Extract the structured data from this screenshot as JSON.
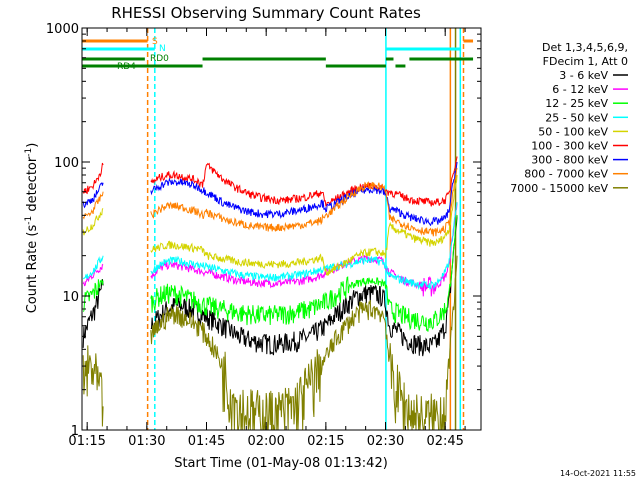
{
  "chart_data": {
    "type": "line",
    "title": "RHESSI Observing Summary Count Rates",
    "xlabel": "Start Time (01-May-08 01:13:42)",
    "ylabel_main": "Count Rate (s",
    "ylabel_sup1": "-1",
    "ylabel_mid": " detector",
    "ylabel_sup2": "-1",
    "ylabel_end": ")",
    "y_scale": "log",
    "ylim": [
      1,
      1000
    ],
    "xlim_minutes": [
      73.7,
      174
    ],
    "grid": false,
    "x_ticks": [
      {
        "t": 75,
        "label": "01:15"
      },
      {
        "t": 90,
        "label": "01:30"
      },
      {
        "t": 105,
        "label": "01:45"
      },
      {
        "t": 120,
        "label": "02:00"
      },
      {
        "t": 135,
        "label": "02:15"
      },
      {
        "t": 150,
        "label": "02:30"
      },
      {
        "t": 165,
        "label": "02:45"
      }
    ],
    "y_ticks": [
      {
        "v": 1,
        "label": "1"
      },
      {
        "v": 10,
        "label": "10"
      },
      {
        "v": 100,
        "label": "100"
      },
      {
        "v": 1000,
        "label": "1000"
      }
    ],
    "legend_header": [
      "Det 1,3,4,5,6,9,",
      "FDecim 1, Att 0"
    ],
    "legend_placement": "right",
    "series": [
      {
        "name": "3 - 6 keV",
        "color": "#000000",
        "t": [
          74,
          76,
          77,
          78,
          79,
          91,
          93,
          95,
          97,
          99,
          101,
          103,
          105,
          107,
          109,
          111,
          113,
          115,
          117,
          119,
          121,
          123,
          125,
          127,
          129,
          131,
          133,
          135,
          137,
          139,
          141,
          143,
          145,
          147,
          149,
          150,
          151,
          153,
          155,
          157,
          159,
          161,
          163,
          165,
          166,
          167,
          168
        ],
        "v": [
          5,
          7,
          8,
          10,
          12,
          6,
          7,
          8,
          8.5,
          8.5,
          8,
          7.5,
          7,
          6.5,
          6,
          5.5,
          5,
          4.8,
          4.6,
          4.5,
          4.4,
          4.4,
          4.5,
          4.6,
          4.8,
          5,
          5.5,
          6,
          7,
          8,
          9,
          10,
          10.5,
          10.5,
          10,
          9,
          6,
          5.5,
          4.8,
          4.5,
          4.3,
          4.2,
          4.5,
          6,
          9,
          20,
          40
        ]
      },
      {
        "name": "6 - 12 keV",
        "color": "#ff00ff",
        "t": [
          74,
          76,
          77,
          78,
          79,
          91,
          93,
          95,
          97,
          99,
          101,
          103,
          105,
          107,
          109,
          111,
          113,
          115,
          117,
          119,
          121,
          123,
          125,
          127,
          129,
          131,
          133,
          135,
          137,
          139,
          141,
          143,
          145,
          147,
          149,
          150,
          151,
          153,
          155,
          157,
          159,
          161,
          163,
          165,
          166,
          167,
          168
        ],
        "v": [
          12,
          14,
          15,
          16,
          17,
          14,
          16,
          17,
          17,
          16.5,
          16,
          15.5,
          15,
          14.5,
          14,
          13.5,
          13,
          12.8,
          12.6,
          12.5,
          12.5,
          12.5,
          12.6,
          12.8,
          13,
          13.5,
          14,
          15,
          16,
          17,
          18,
          18.5,
          19,
          19,
          18.5,
          17,
          15,
          14,
          13,
          12.5,
          12,
          11.8,
          12,
          14,
          17,
          30,
          50
        ]
      },
      {
        "name": "12 - 25 keV",
        "color": "#00ff00",
        "t": [
          74,
          76,
          77,
          78,
          79,
          91,
          93,
          95,
          97,
          99,
          101,
          103,
          105,
          107,
          109,
          111,
          113,
          115,
          117,
          119,
          121,
          123,
          125,
          127,
          129,
          131,
          133,
          135,
          137,
          139,
          141,
          143,
          145,
          147,
          149,
          150,
          151,
          153,
          155,
          157,
          159,
          161,
          163,
          165,
          166,
          167,
          168
        ],
        "v": [
          9,
          10,
          11,
          12,
          13,
          9,
          10,
          10.5,
          10.5,
          10,
          9.5,
          9,
          8.5,
          8.2,
          8,
          7.8,
          7.5,
          7.4,
          7.3,
          7.2,
          7.2,
          7.3,
          7.4,
          7.6,
          7.8,
          8,
          8.5,
          9,
          10,
          11,
          12,
          12.5,
          13,
          13,
          12.5,
          12,
          8,
          7.5,
          7,
          6.8,
          6.6,
          6.5,
          6.8,
          8,
          10,
          20,
          40
        ]
      },
      {
        "name": "25 - 50 keV",
        "color": "#00ffff",
        "t": [
          74,
          76,
          77,
          78,
          79,
          91,
          93,
          95,
          97,
          99,
          101,
          103,
          105,
          107,
          109,
          111,
          113,
          115,
          117,
          119,
          121,
          123,
          125,
          127,
          129,
          131,
          133,
          135,
          137,
          139,
          141,
          143,
          145,
          147,
          149,
          150,
          151,
          153,
          155,
          157,
          159,
          161,
          163,
          165,
          166,
          167,
          168
        ],
        "v": [
          13,
          15,
          16,
          18,
          20,
          15,
          17,
          18,
          18.5,
          18,
          17.5,
          17,
          16.5,
          16,
          15.5,
          15,
          14.5,
          14.2,
          14,
          13.8,
          13.8,
          13.9,
          14,
          14.2,
          14.5,
          15,
          15.5,
          16,
          16.5,
          17,
          17.5,
          18,
          18.5,
          18.5,
          18,
          17,
          14,
          13.5,
          13,
          12.5,
          12.2,
          12,
          12.5,
          15,
          18,
          30,
          50
        ]
      },
      {
        "name": "50 - 100 keV",
        "color": "#d4d400",
        "t": [
          74,
          76,
          77,
          78,
          79,
          91,
          93,
          95,
          97,
          99,
          101,
          103,
          104,
          105,
          107,
          109,
          111,
          113,
          115,
          117,
          119,
          121,
          123,
          125,
          127,
          129,
          131,
          133,
          134,
          135,
          137,
          139,
          141,
          143,
          145,
          147,
          149,
          150,
          151,
          153,
          155,
          157,
          159,
          161,
          163,
          165,
          166,
          167,
          168
        ],
        "v": [
          30,
          33,
          36,
          40,
          45,
          22,
          23,
          24,
          24,
          23.5,
          23,
          22.5,
          22,
          20,
          19.5,
          19,
          18.5,
          18,
          17.8,
          17.5,
          17.4,
          17.3,
          17.3,
          17.4,
          17.6,
          18,
          18.5,
          19,
          19.5,
          15,
          16,
          17,
          18.5,
          20,
          21,
          21.5,
          21,
          20,
          33,
          31,
          29,
          27,
          26,
          25,
          25,
          28,
          32,
          50,
          80
        ]
      },
      {
        "name": "100 - 300 keV",
        "color": "#ff0000",
        "t": [
          74,
          76,
          77,
          78,
          79,
          91,
          93,
          95,
          97,
          99,
          101,
          103,
          104,
          105,
          107,
          109,
          111,
          113,
          115,
          117,
          119,
          121,
          123,
          125,
          127,
          129,
          131,
          133,
          134,
          135,
          137,
          139,
          141,
          143,
          145,
          147,
          149,
          150,
          151,
          153,
          155,
          157,
          159,
          161,
          163,
          165,
          166,
          167,
          168
        ],
        "v": [
          60,
          65,
          70,
          80,
          95,
          70,
          76,
          80,
          80,
          78,
          75,
          72,
          68,
          95,
          85,
          75,
          68,
          63,
          59,
          56,
          54,
          53,
          52,
          52,
          53,
          54,
          56,
          58,
          60,
          48,
          52,
          56,
          60,
          64,
          66,
          66,
          64,
          60,
          60,
          57,
          54,
          52,
          51,
          50,
          50,
          52,
          58,
          85,
          110
        ]
      },
      {
        "name": "300 - 800 keV",
        "color": "#0000ff",
        "t": [
          74,
          76,
          77,
          78,
          79,
          91,
          93,
          95,
          97,
          99,
          101,
          103,
          104,
          105,
          107,
          109,
          111,
          113,
          115,
          117,
          119,
          121,
          123,
          125,
          127,
          129,
          131,
          133,
          134,
          135,
          137,
          139,
          141,
          143,
          145,
          147,
          149,
          150,
          151,
          153,
          155,
          157,
          159,
          161,
          163,
          165,
          166,
          167,
          168
        ],
        "v": [
          48,
          52,
          56,
          62,
          70,
          60,
          66,
          70,
          71,
          70,
          68,
          65,
          62,
          60,
          55,
          50,
          47,
          45,
          43,
          42,
          41,
          41,
          41,
          42,
          43,
          44,
          46,
          48,
          50,
          45,
          48,
          52,
          56,
          60,
          62,
          63,
          61,
          58,
          45,
          43,
          40,
          38,
          37,
          36,
          36,
          38,
          44,
          70,
          100
        ]
      },
      {
        "name": "800 - 7000 keV",
        "color": "#ff8000",
        "t": [
          74,
          76,
          77,
          78,
          79,
          91,
          93,
          95,
          97,
          99,
          101,
          103,
          104,
          105,
          107,
          109,
          111,
          113,
          115,
          117,
          119,
          121,
          123,
          125,
          127,
          129,
          131,
          133,
          134,
          135,
          137,
          139,
          141,
          143,
          145,
          147,
          149,
          150,
          151,
          153,
          155,
          157,
          159,
          161,
          163,
          165,
          166,
          167,
          168
        ],
        "v": [
          38,
          42,
          46,
          52,
          60,
          40,
          44,
          47,
          47,
          46,
          44,
          42,
          40,
          42,
          40,
          38,
          36,
          35,
          34,
          33,
          32.5,
          32.5,
          32.5,
          33,
          33.5,
          34,
          35,
          36,
          37,
          40,
          44,
          50,
          56,
          62,
          66,
          67,
          65,
          62,
          38,
          36,
          34,
          32,
          31,
          30,
          30,
          32,
          36,
          60,
          90
        ]
      },
      {
        "name": "7000 - 15000 keV",
        "color": "#808000",
        "t": [
          74,
          76,
          77,
          78,
          79,
          91,
          93,
          95,
          97,
          99,
          101,
          103,
          105,
          107,
          109,
          111,
          113,
          115,
          117,
          119,
          121,
          123,
          125,
          127,
          129,
          131,
          133,
          135,
          137,
          139,
          141,
          143,
          145,
          147,
          149,
          150,
          151,
          153,
          155,
          157,
          159,
          161,
          163,
          165,
          166,
          167,
          168
        ],
        "v": [
          2.5,
          3,
          2.5,
          2,
          1.5,
          5,
          6,
          7,
          7.5,
          7,
          6.5,
          6,
          5,
          4,
          3,
          2,
          1.5,
          1.4,
          1.3,
          1.3,
          1.3,
          1.3,
          1.4,
          1.5,
          1.8,
          2.2,
          2.8,
          3.5,
          4.5,
          5.5,
          6.5,
          7.5,
          8,
          8,
          7.5,
          6.5,
          3,
          2,
          1.5,
          1.3,
          1.2,
          1.2,
          1.3,
          1.6,
          3,
          8,
          20
        ]
      }
    ],
    "vertical_lines": [
      {
        "t": 90.2,
        "color": "#ff8000",
        "style": "dashed"
      },
      {
        "t": 92.0,
        "color": "#00ffff",
        "style": "dashed"
      },
      {
        "t": 150.1,
        "color": "#00ffff",
        "style": "solid"
      },
      {
        "t": 166.3,
        "color": "#ff8000",
        "style": "solid"
      },
      {
        "t": 167.6,
        "color": "#808000",
        "style": "solid"
      },
      {
        "t": 168.8,
        "color": "#00ffff",
        "style": "solid"
      },
      {
        "t": 169.6,
        "color": "#ff8000",
        "style": "dashed"
      }
    ],
    "flag_bars": [
      {
        "label": "S",
        "color": "#ff8000",
        "segments": [
          [
            73.7,
            90.2
          ],
          [
            169.6,
            172
          ]
        ]
      },
      {
        "label": "N",
        "color": "#00ffff",
        "segments": [
          [
            73.7,
            92.0
          ],
          [
            150.1,
            169
          ]
        ]
      },
      {
        "label": "RD0",
        "color": "#008000",
        "segments": [
          [
            73.7,
            89.5
          ],
          [
            104,
            135
          ],
          [
            150.1,
            152
          ],
          [
            156,
            172
          ]
        ]
      },
      {
        "label": "RD4",
        "color": "#008000",
        "segments": [
          [
            73.7,
            104
          ],
          [
            135,
            150.1
          ],
          [
            152.5,
            155
          ]
        ]
      }
    ]
  },
  "footer": {
    "date_stamp": "14-Oct-2021 11:55"
  }
}
